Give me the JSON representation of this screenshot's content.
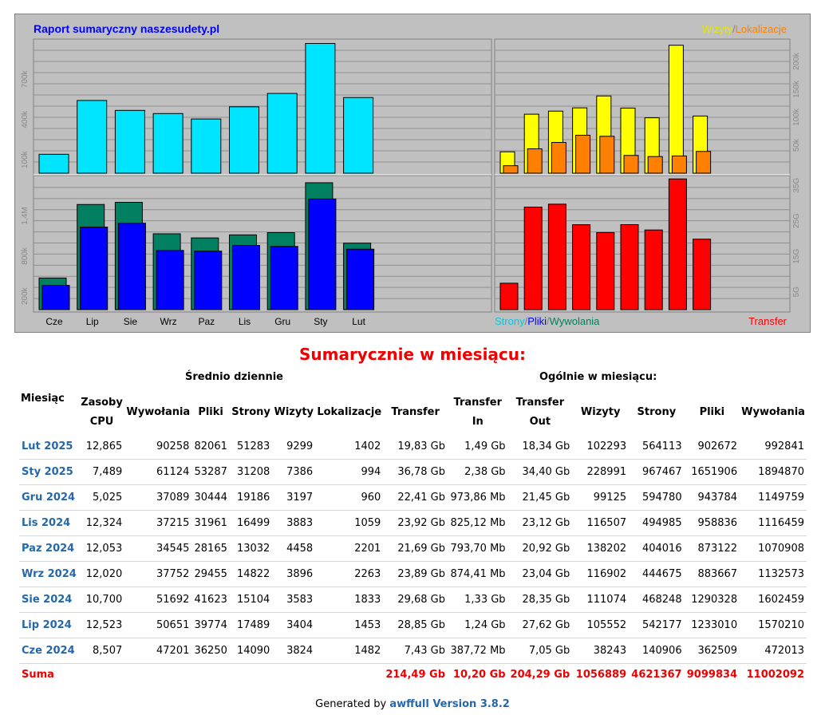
{
  "chart": {
    "title": "Raport sumaryczny naszesudety.pl",
    "legend_top_right": {
      "a": "Wizyty",
      "sep": "/",
      "b": "Lokalizacje"
    },
    "legend_bottom_left": {
      "a": "Strony",
      "sep1": "/",
      "b": "Pliki",
      "sep2": "/",
      "c": "Wywolania"
    },
    "legend_bottom_right": "Transfer",
    "colors": {
      "frame": "#c0c0c0",
      "plot_bg": "#c0c0c0",
      "grid": "#909090",
      "strony": "#00e5ff",
      "pliki": "#0000ff",
      "wywolania": "#008060",
      "wizyty": "#ffff00",
      "lokalizacje": "#ff8000",
      "transfer": "#ff0000",
      "title": "#0000ff"
    },
    "categories": [
      "Cze",
      "Lip",
      "Sie",
      "Wrz",
      "Paz",
      "Lis",
      "Gru",
      "Sty",
      "Lut"
    ],
    "top_left_ticks": [
      "100k",
      "400k",
      "700k"
    ],
    "bottom_left_ticks": [
      "200k",
      "800k",
      "1,4M"
    ],
    "top_right_ticks": [
      "50k",
      "100k",
      "150k",
      "200k"
    ],
    "bottom_right_ticks": [
      "5G",
      "15G",
      "25G",
      "35G"
    ]
  },
  "chart_data": [
    {
      "type": "bar",
      "categories": [
        "Cze",
        "Lip",
        "Sie",
        "Wrz",
        "Paz",
        "Lis",
        "Gru",
        "Sty",
        "Lut"
      ],
      "series": [
        {
          "name": "Strony",
          "values": [
            140906,
            542177,
            468248,
            444675,
            404016,
            494985,
            594780,
            967467,
            564113
          ]
        }
      ]
    },
    {
      "type": "bar",
      "categories": [
        "Cze",
        "Lip",
        "Sie",
        "Wrz",
        "Paz",
        "Lis",
        "Gru",
        "Sty",
        "Lut"
      ],
      "series": [
        {
          "name": "Wywolania",
          "values": [
            472013,
            1570210,
            1602459,
            1132573,
            1070908,
            1116459,
            1149759,
            1894870,
            992841
          ]
        },
        {
          "name": "Pliki",
          "values": [
            362509,
            1233010,
            1290328,
            883667,
            873122,
            958836,
            943784,
            1651906,
            902672
          ]
        }
      ]
    },
    {
      "type": "bar",
      "categories": [
        "Cze",
        "Lip",
        "Sie",
        "Wrz",
        "Paz",
        "Lis",
        "Gru",
        "Sty",
        "Lut"
      ],
      "series": [
        {
          "name": "Wizyty",
          "values": [
            38243,
            105552,
            111074,
            116902,
            138202,
            116507,
            99125,
            228991,
            102293
          ]
        },
        {
          "name": "Lokalizacje",
          "values": [
            13338,
            43587,
            54991,
            67890,
            66030,
            31770,
            29760,
            30814,
            38958
          ]
        }
      ]
    },
    {
      "type": "bar",
      "categories": [
        "Cze",
        "Lip",
        "Sie",
        "Wrz",
        "Paz",
        "Lis",
        "Gru",
        "Sty",
        "Lut"
      ],
      "series": [
        {
          "name": "Transfer",
          "values": [
            7.43,
            28.85,
            29.68,
            23.89,
            21.69,
            23.92,
            22.41,
            36.78,
            19.83
          ]
        }
      ]
    }
  ],
  "summary": {
    "title": "Sumarycznie w miesiącu:",
    "group_daily": "Średnio dziennie",
    "group_monthly": "Ogólnie w miesiącu:",
    "headers": {
      "month": "Miesiąc",
      "cpu_line1": "Zasoby",
      "cpu_line2": "CPU",
      "hits": "Wywołania",
      "files": "Pliki",
      "pages": "Strony",
      "visits": "Wizyty",
      "sites": "Lokalizacje",
      "transfer": "Transfer",
      "tin_line1": "Transfer",
      "tin_line2": "In",
      "tout_line1": "Transfer",
      "tout_line2": "Out",
      "m_visits": "Wizyty",
      "m_pages": "Strony",
      "m_files": "Pliki",
      "m_hits": "Wywołania"
    },
    "rows": [
      {
        "month": "Lut 2025",
        "cpu": "12,865",
        "hits": "90258",
        "files": "82061",
        "pages": "51283",
        "visits": "9299",
        "sites": "1402",
        "transfer": "19,83 Gb",
        "tin": "1,49 Gb",
        "tout": "18,34 Gb",
        "m_visits": "102293",
        "m_pages": "564113",
        "m_files": "902672",
        "m_hits": "992841"
      },
      {
        "month": "Sty 2025",
        "cpu": "7,489",
        "hits": "61124",
        "files": "53287",
        "pages": "31208",
        "visits": "7386",
        "sites": "994",
        "transfer": "36,78 Gb",
        "tin": "2,38 Gb",
        "tout": "34,40 Gb",
        "m_visits": "228991",
        "m_pages": "967467",
        "m_files": "1651906",
        "m_hits": "1894870"
      },
      {
        "month": "Gru 2024",
        "cpu": "5,025",
        "hits": "37089",
        "files": "30444",
        "pages": "19186",
        "visits": "3197",
        "sites": "960",
        "transfer": "22,41 Gb",
        "tin": "973,86 Mb",
        "tout": "21,45 Gb",
        "m_visits": "99125",
        "m_pages": "594780",
        "m_files": "943784",
        "m_hits": "1149759"
      },
      {
        "month": "Lis 2024",
        "cpu": "12,324",
        "hits": "37215",
        "files": "31961",
        "pages": "16499",
        "visits": "3883",
        "sites": "1059",
        "transfer": "23,92 Gb",
        "tin": "825,12 Mb",
        "tout": "23,12 Gb",
        "m_visits": "116507",
        "m_pages": "494985",
        "m_files": "958836",
        "m_hits": "1116459"
      },
      {
        "month": "Paz 2024",
        "cpu": "12,053",
        "hits": "34545",
        "files": "28165",
        "pages": "13032",
        "visits": "4458",
        "sites": "2201",
        "transfer": "21,69 Gb",
        "tin": "793,70 Mb",
        "tout": "20,92 Gb",
        "m_visits": "138202",
        "m_pages": "404016",
        "m_files": "873122",
        "m_hits": "1070908"
      },
      {
        "month": "Wrz 2024",
        "cpu": "12,020",
        "hits": "37752",
        "files": "29455",
        "pages": "14822",
        "visits": "3896",
        "sites": "2263",
        "transfer": "23,89 Gb",
        "tin": "874,41 Mb",
        "tout": "23,04 Gb",
        "m_visits": "116902",
        "m_pages": "444675",
        "m_files": "883667",
        "m_hits": "1132573"
      },
      {
        "month": "Sie 2024",
        "cpu": "10,700",
        "hits": "51692",
        "files": "41623",
        "pages": "15104",
        "visits": "3583",
        "sites": "1833",
        "transfer": "29,68 Gb",
        "tin": "1,33 Gb",
        "tout": "28,35 Gb",
        "m_visits": "111074",
        "m_pages": "468248",
        "m_files": "1290328",
        "m_hits": "1602459"
      },
      {
        "month": "Lip 2024",
        "cpu": "12,523",
        "hits": "50651",
        "files": "39774",
        "pages": "17489",
        "visits": "3404",
        "sites": "1453",
        "transfer": "28,85 Gb",
        "tin": "1,24 Gb",
        "tout": "27,62 Gb",
        "m_visits": "105552",
        "m_pages": "542177",
        "m_files": "1233010",
        "m_hits": "1570210"
      },
      {
        "month": "Cze 2024",
        "cpu": "8,507",
        "hits": "47201",
        "files": "36250",
        "pages": "14090",
        "visits": "3824",
        "sites": "1482",
        "transfer": "7,43 Gb",
        "tin": "387,72 Mb",
        "tout": "7,05 Gb",
        "m_visits": "38243",
        "m_pages": "140906",
        "m_files": "362509",
        "m_hits": "472013"
      }
    ],
    "sum": {
      "label": "Suma",
      "transfer": "214,49 Gb",
      "tin": "10,20 Gb",
      "tout": "204,29 Gb",
      "m_visits": "1056889",
      "m_pages": "4621367",
      "m_files": "9099834",
      "m_hits": "11002092"
    }
  },
  "footer": {
    "prefix": "Generated by",
    "link": "awffull Version 3.8.2"
  }
}
